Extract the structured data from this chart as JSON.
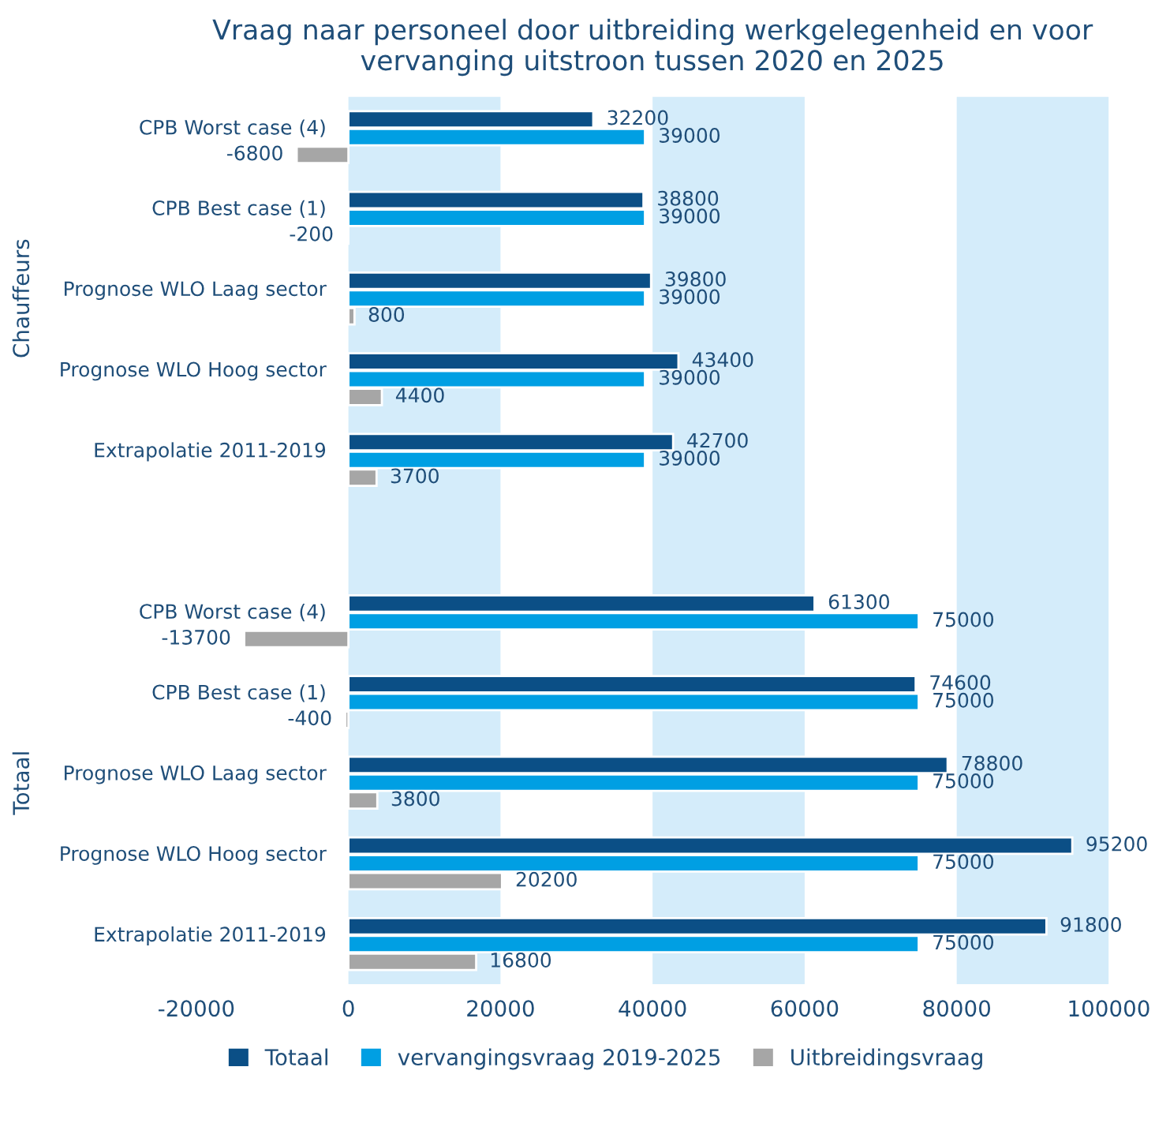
{
  "chart_data": {
    "type": "bar",
    "orientation": "horizontal",
    "title": "Vraag naar personeel door uitbreiding werkgelegenheid en voor vervanging uitstroon tussen 2020 en 2025",
    "categories": [
      "CPB Worst case (4)",
      "CPB Best case (1)",
      "Prognose WLO Laag sector",
      "Prognose WLO Hoog sector",
      "Extrapolatie 2011-2019",
      null,
      "CPB Worst case (4)",
      "CPB Best case (1)",
      "Prognose WLO Laag sector",
      "Prognose WLO Hoog sector",
      "Extrapolatie 2011-2019"
    ],
    "series": [
      {
        "name": "Totaal",
        "color": "#0b4f86",
        "values": [
          32200,
          38800,
          39800,
          43400,
          42700,
          null,
          61300,
          74600,
          78800,
          95200,
          91800
        ]
      },
      {
        "name": "vervangingsvraag 2019-2025",
        "color": "#009fe3",
        "values": [
          39000,
          39000,
          39000,
          39000,
          39000,
          null,
          75000,
          75000,
          75000,
          75000,
          75000
        ]
      },
      {
        "name": "Uitbreidingsvraag",
        "color": "#a6a6a6",
        "values": [
          -6800,
          -200,
          800,
          4400,
          3700,
          null,
          -13700,
          -400,
          3800,
          20200,
          16800
        ]
      }
    ],
    "annotations": [
      "Chauffeurs",
      "Totaal"
    ],
    "xlim": [
      -20000,
      100000
    ],
    "xticks": [
      -20000,
      0,
      20000,
      40000,
      60000,
      80000,
      100000
    ],
    "bands": [
      {
        "axis": "x",
        "from": 0,
        "to": 20000,
        "color": "#d4ecfa"
      },
      {
        "axis": "x",
        "from": 40000,
        "to": 60000,
        "color": "#d4ecfa"
      },
      {
        "axis": "x",
        "from": 80000,
        "to": 100000,
        "color": "#d4ecfa"
      }
    ],
    "data_labels": true,
    "grid": false,
    "legend": "bottom"
  }
}
